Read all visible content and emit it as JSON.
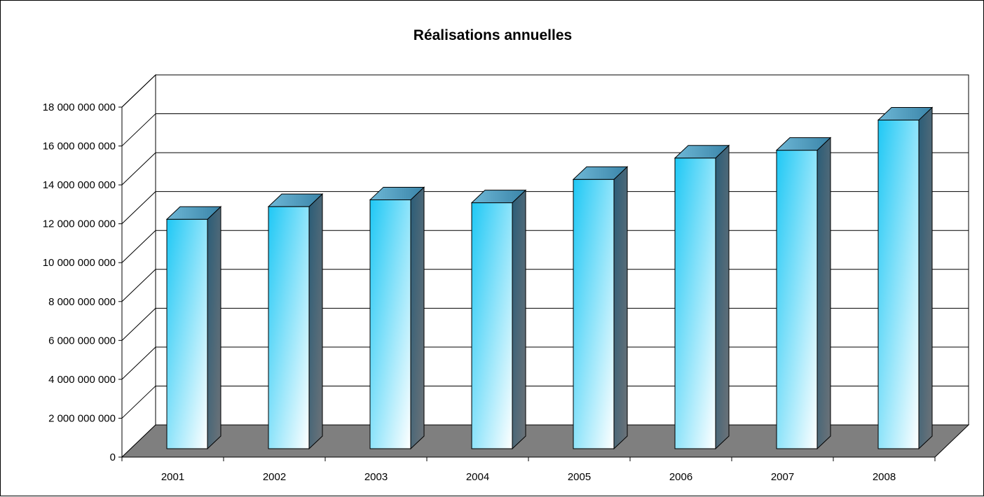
{
  "chart_data": {
    "type": "bar",
    "title": "Réalisations annuelles",
    "xlabel": "",
    "ylabel": "",
    "categories": [
      "2001",
      "2002",
      "2003",
      "2004",
      "2005",
      "2006",
      "2007",
      "2008"
    ],
    "series": [
      {
        "values": [
          11800000000,
          12450000000,
          12800000000,
          12650000000,
          13850000000,
          14950000000,
          15350000000,
          16900000000
        ]
      }
    ],
    "ylim": [
      0,
      18000000000
    ],
    "y_ticks": [
      "0",
      "2 000 000 000",
      "4 000 000 000",
      "6 000 000 000",
      "8 000 000 000",
      "10 000 000 000",
      "12 000 000 000",
      "14 000 000 000",
      "16 000 000 000",
      "18 000 000 000"
    ],
    "grid": true,
    "legend": "none",
    "style": "3d-column",
    "colors": {
      "bar_front_top": "#1fc8f5",
      "bar_front_bottom": "#ffffff",
      "bar_side": "#2a5d78",
      "bar_top": "#5aa8c8",
      "floor": "#7f7f7f"
    }
  }
}
